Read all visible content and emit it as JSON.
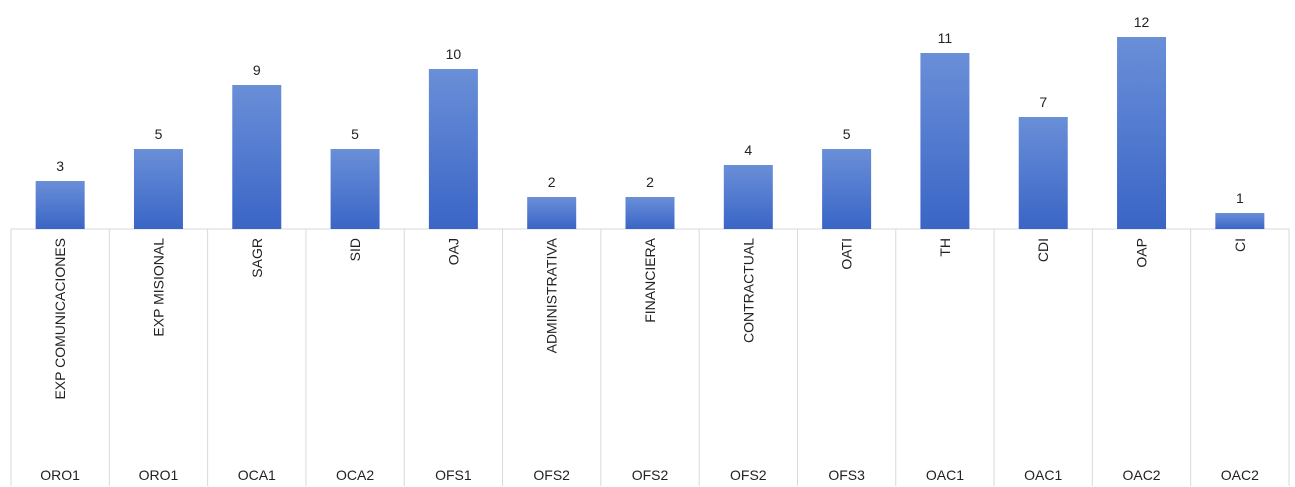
{
  "chart_data": {
    "type": "bar",
    "title": "",
    "xlabel": "",
    "ylabel": "",
    "categories": [
      "EXP COMUNICACIONES",
      "EXP MISIONAL",
      "SAGR",
      "SID",
      "OAJ",
      "ADMINISTRATIVA",
      "FINANCIERA",
      "CONTRACTUAL",
      "OATI",
      "TH",
      "CDI",
      "OAP",
      "CI"
    ],
    "groups": [
      "ORO1",
      "ORO1",
      "OCA1",
      "OCA2",
      "OFS1",
      "OFS2",
      "OFS2",
      "OFS2",
      "OFS3",
      "OAC1",
      "OAC1",
      "OAC2",
      "OAC2"
    ],
    "values": [
      3,
      5,
      9,
      5,
      10,
      2,
      2,
      4,
      5,
      11,
      7,
      12,
      1
    ],
    "ylim": [
      0,
      12
    ],
    "grid": false,
    "legend": "none",
    "colors": {
      "bar_top": "#6a8fd8",
      "bar_bottom": "#3a65c6",
      "axis": "#d9d9d9",
      "text": "#222222"
    }
  }
}
